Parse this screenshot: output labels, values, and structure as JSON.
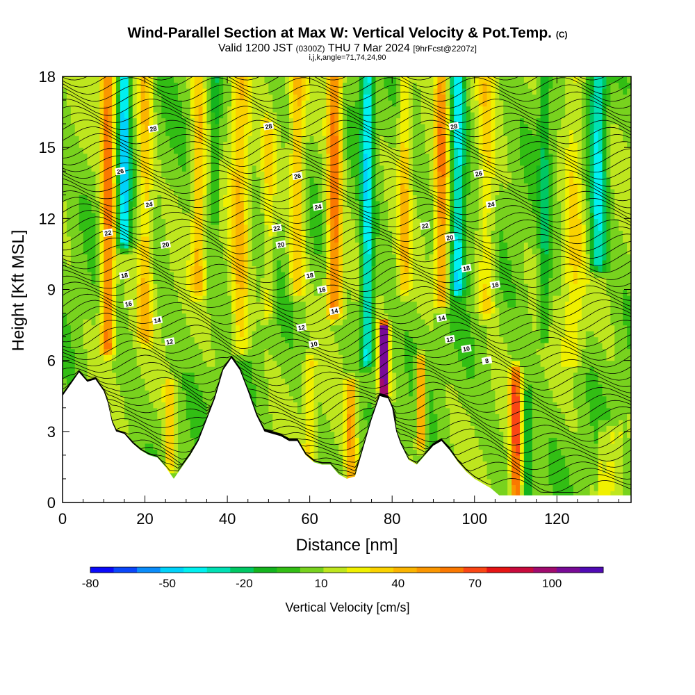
{
  "header": {
    "title_main": "Wind-Parallel Section at Max W: Vertical Velocity & Pot.Temp.",
    "title_copyright": "(C)",
    "valid_prefix": "Valid 1200 JST",
    "valid_utc": "(0300Z)",
    "valid_date": "THU 7 Mar 2024",
    "forecast_info": "[9hrFcst@2207z]",
    "params": "i,j,k,angle=71,74,24,90"
  },
  "chart_data": {
    "type": "heatmap",
    "xlabel": "Distance [nm]",
    "ylabel": "Height [Kft MSL]",
    "xlim": [
      0,
      138
    ],
    "ylim": [
      0,
      18
    ],
    "x_ticks": [
      0,
      20,
      40,
      60,
      80,
      100,
      120
    ],
    "y_ticks": [
      0,
      3,
      6,
      9,
      12,
      15,
      18
    ],
    "colorbar": {
      "label": "Vertical Velocity [cm/s]",
      "tick_labels": [
        "-80",
        "-50",
        "-20",
        "10",
        "40",
        "70",
        "100"
      ],
      "tick_values": [
        -80,
        -50,
        -20,
        10,
        40,
        70,
        100
      ],
      "range": [
        -80,
        120
      ],
      "colors": [
        "#0a0afa",
        "#0a46fa",
        "#0a8cfa",
        "#00d2fa",
        "#00f0f0",
        "#00e0b4",
        "#00c864",
        "#14b41e",
        "#32be14",
        "#78d21e",
        "#bee61e",
        "#f0f000",
        "#fad200",
        "#fab400",
        "#fa9600",
        "#fa7800",
        "#fa4614",
        "#e61414",
        "#c80a3c",
        "#a00a6e",
        "#780a96",
        "#500ab4"
      ]
    },
    "background_w": 8,
    "terrain_kft": [
      [
        0,
        4.5
      ],
      [
        2,
        5.0
      ],
      [
        4,
        5.5
      ],
      [
        6,
        5.1
      ],
      [
        8,
        5.2
      ],
      [
        10,
        4.7
      ],
      [
        11,
        4.2
      ],
      [
        12,
        3.4
      ],
      [
        13,
        3.0
      ],
      [
        15,
        2.9
      ],
      [
        17,
        2.5
      ],
      [
        19,
        2.2
      ],
      [
        21,
        2.0
      ],
      [
        23,
        1.9
      ],
      [
        25,
        1.5
      ],
      [
        27,
        1.0
      ],
      [
        29,
        1.5
      ],
      [
        31,
        2.0
      ],
      [
        33,
        2.6
      ],
      [
        35,
        3.5
      ],
      [
        37,
        4.4
      ],
      [
        39,
        5.6
      ],
      [
        41,
        6.1
      ],
      [
        43,
        5.6
      ],
      [
        45,
        4.7
      ],
      [
        47,
        3.7
      ],
      [
        49,
        3.0
      ],
      [
        51,
        2.9
      ],
      [
        53,
        2.8
      ],
      [
        55,
        2.6
      ],
      [
        57,
        2.6
      ],
      [
        59,
        2.0
      ],
      [
        61,
        1.7
      ],
      [
        63,
        1.6
      ],
      [
        65,
        1.6
      ],
      [
        67,
        1.2
      ],
      [
        69,
        1.0
      ],
      [
        71,
        1.1
      ],
      [
        73,
        2.3
      ],
      [
        75,
        3.5
      ],
      [
        76,
        4.0
      ],
      [
        77,
        4.5
      ],
      [
        79,
        4.4
      ],
      [
        80,
        4.0
      ],
      [
        81,
        3.0
      ],
      [
        82,
        2.5
      ],
      [
        84,
        1.8
      ],
      [
        86,
        1.6
      ],
      [
        88,
        2.0
      ],
      [
        90,
        2.4
      ],
      [
        92,
        2.6
      ],
      [
        94,
        2.2
      ],
      [
        96,
        1.7
      ],
      [
        98,
        1.3
      ],
      [
        100,
        1.0
      ],
      [
        102,
        0.8
      ],
      [
        104,
        0.6
      ],
      [
        106,
        0.3
      ],
      [
        110,
        0.3
      ],
      [
        115,
        0.3
      ],
      [
        120,
        0.3
      ],
      [
        125,
        0.3
      ],
      [
        130,
        0.3
      ],
      [
        135,
        0.3
      ],
      [
        138,
        0.3
      ]
    ],
    "w_features": [
      {
        "x": 11,
        "w": 55,
        "halfwidth": 1.6,
        "zmin": 6.5,
        "zmax": 18
      },
      {
        "x": 15,
        "w": -55,
        "halfwidth": 1.4,
        "zmin": 11,
        "zmax": 18
      },
      {
        "x": 20,
        "w": 30,
        "halfwidth": 1.8,
        "zmin": 7,
        "zmax": 18
      },
      {
        "x": 26,
        "w": 28,
        "halfwidth": 1.2,
        "zmin": 1.5,
        "zmax": 5
      },
      {
        "x": 33,
        "w": 30,
        "halfwidth": 1.6,
        "zmin": 9,
        "zmax": 18
      },
      {
        "x": 37,
        "w": -20,
        "halfwidth": 1.2,
        "zmin": 12,
        "zmax": 18
      },
      {
        "x": 43,
        "w": 30,
        "halfwidth": 2.2,
        "zmin": 6.5,
        "zmax": 18
      },
      {
        "x": 50,
        "w": 20,
        "halfwidth": 1.5,
        "zmin": 8,
        "zmax": 16
      },
      {
        "x": 57,
        "w": 30,
        "halfwidth": 1.8,
        "zmin": 9,
        "zmax": 18
      },
      {
        "x": 60,
        "w": 22,
        "halfwidth": 1.4,
        "zmin": 2,
        "zmax": 6
      },
      {
        "x": 66,
        "w": 55,
        "halfwidth": 1.8,
        "zmin": 8,
        "zmax": 18
      },
      {
        "x": 70,
        "w": 40,
        "halfwidth": 1.3,
        "zmin": 1,
        "zmax": 5
      },
      {
        "x": 74,
        "w": -50,
        "halfwidth": 1.5,
        "zmin": 6,
        "zmax": 18
      },
      {
        "x": 78,
        "w": 115,
        "halfwidth": 1.0,
        "zmin": 4.5,
        "zmax": 7.4
      },
      {
        "x": 83,
        "w": 28,
        "halfwidth": 1.5,
        "zmin": 9,
        "zmax": 18
      },
      {
        "x": 87,
        "w": 55,
        "halfwidth": 0.9,
        "zmin": 2.5,
        "zmax": 6
      },
      {
        "x": 92,
        "w": 45,
        "halfwidth": 1.6,
        "zmin": 8.5,
        "zmax": 18
      },
      {
        "x": 96,
        "w": -50,
        "halfwidth": 1.8,
        "zmin": 9,
        "zmax": 18
      },
      {
        "x": 103,
        "w": 22,
        "halfwidth": 2.0,
        "zmin": 8,
        "zmax": 18
      },
      {
        "x": 110,
        "w": 60,
        "halfwidth": 1.2,
        "zmin": 0.3,
        "zmax": 5.5
      },
      {
        "x": 113,
        "w": -30,
        "halfwidth": 1.0,
        "zmin": 0.3,
        "zmax": 4.5
      },
      {
        "x": 117,
        "w": -25,
        "halfwidth": 1.3,
        "zmin": 7,
        "zmax": 18
      },
      {
        "x": 124,
        "w": 20,
        "halfwidth": 2.5,
        "zmin": 6,
        "zmax": 18
      },
      {
        "x": 130,
        "w": -45,
        "halfwidth": 2.0,
        "zmin": 10,
        "zmax": 18
      },
      {
        "x": 131,
        "w": 45,
        "halfwidth": 0.5,
        "zmin": 0.5,
        "zmax": 3
      },
      {
        "x": 133,
        "w": 55,
        "halfwidth": 0.5,
        "zmin": 0.5,
        "zmax": 3
      },
      {
        "x": 135,
        "w": 40,
        "halfwidth": 0.5,
        "zmin": 0.5,
        "zmax": 3
      }
    ],
    "contour_labels": [
      {
        "text": "28",
        "x": 22,
        "y": 15.8
      },
      {
        "text": "28",
        "x": 50,
        "y": 15.9
      },
      {
        "text": "28",
        "x": 95,
        "y": 15.9
      },
      {
        "text": "26",
        "x": 14,
        "y": 14.0
      },
      {
        "text": "26",
        "x": 57,
        "y": 13.8
      },
      {
        "text": "26",
        "x": 101,
        "y": 13.9
      },
      {
        "text": "24",
        "x": 21,
        "y": 12.6
      },
      {
        "text": "24",
        "x": 62,
        "y": 12.5
      },
      {
        "text": "24",
        "x": 104,
        "y": 12.6
      },
      {
        "text": "22",
        "x": 11,
        "y": 11.4
      },
      {
        "text": "22",
        "x": 52,
        "y": 11.6
      },
      {
        "text": "22",
        "x": 88,
        "y": 11.7
      },
      {
        "text": "20",
        "x": 25,
        "y": 10.9
      },
      {
        "text": "20",
        "x": 53,
        "y": 10.9
      },
      {
        "text": "20",
        "x": 94,
        "y": 11.2
      },
      {
        "text": "18",
        "x": 15,
        "y": 9.6
      },
      {
        "text": "18",
        "x": 60,
        "y": 9.6
      },
      {
        "text": "18",
        "x": 98,
        "y": 9.9
      },
      {
        "text": "16",
        "x": 16,
        "y": 8.4
      },
      {
        "text": "16",
        "x": 63,
        "y": 9.0
      },
      {
        "text": "16",
        "x": 105,
        "y": 9.2
      },
      {
        "text": "14",
        "x": 23,
        "y": 7.7
      },
      {
        "text": "14",
        "x": 66,
        "y": 8.1
      },
      {
        "text": "14",
        "x": 92,
        "y": 7.8
      },
      {
        "text": "12",
        "x": 26,
        "y": 6.8
      },
      {
        "text": "12",
        "x": 58,
        "y": 7.4
      },
      {
        "text": "12",
        "x": 94,
        "y": 6.9
      },
      {
        "text": "10",
        "x": 61,
        "y": 6.7
      },
      {
        "text": "10",
        "x": 98,
        "y": 6.5
      },
      {
        "text": "8",
        "x": 103,
        "y": 6.0
      }
    ]
  }
}
